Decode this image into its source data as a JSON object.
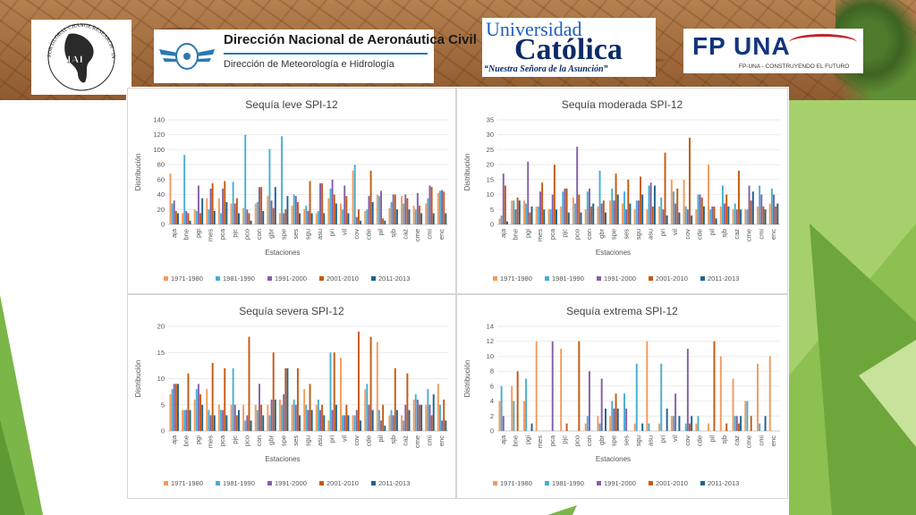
{
  "header": {
    "iai": {
      "ring_text": "FOR GLOBAL CHANGE RESEARCH · INTER-AMERICAN INSTITUTE",
      "initials": "IAI"
    },
    "dinac": {
      "title": "Dirección Nacional de Aeronáutica Civil",
      "subtitle": "Dirección de Meteorología e Hidrología"
    },
    "uc": {
      "line1": "Universidad",
      "line2": "Católica",
      "line3": "“Nuestra Señora de la Asunción”"
    },
    "fpuna": {
      "mark": "FP UNA",
      "tagline": "FP-UNA - CONSTRUYENDO EL FUTURO"
    }
  },
  "colors": {
    "1971-1980": "#f39b5c",
    "1981-1990": "#4aaed0",
    "1991-2000": "#8560a8",
    "2001-2010": "#c55a11",
    "2011-2013": "#1f6391",
    "accent_green": "#7ab648"
  },
  "chart_data": [
    {
      "type": "bar",
      "title": "Sequía leve SPI-12",
      "xlabel": "Estaciones",
      "ylabel": "Distribución",
      "ylim": [
        0,
        140
      ],
      "yticks": [
        0,
        20,
        40,
        60,
        80,
        100,
        120,
        140
      ],
      "grid": true,
      "legend": "bottom",
      "categories": [
        "aja",
        "bne",
        "pgi",
        "mes",
        "pca",
        "pjc",
        "pco",
        "con",
        "gbr",
        "spe",
        "ses",
        "sgu",
        "asu",
        "pri",
        "vil",
        "cov",
        "cde",
        "pil",
        "sjb",
        "caz",
        "cme",
        "cmi",
        "enc"
      ],
      "series": [
        {
          "name": "1971-1980",
          "values": [
            68,
            15,
            20,
            35,
            35,
            28,
            22,
            28,
            38,
            15,
            25,
            20,
            15,
            35,
            28,
            72,
            18,
            40,
            22,
            38,
            25,
            28,
            42
          ]
        },
        {
          "name": "1981-1990",
          "values": [
            28,
            93,
            18,
            20,
            15,
            57,
            120,
            30,
            101,
            118,
            40,
            25,
            18,
            48,
            20,
            80,
            20,
            38,
            30,
            28,
            20,
            35,
            45
          ]
        },
        {
          "name": "1991-2000",
          "values": [
            32,
            18,
            52,
            48,
            48,
            28,
            20,
            50,
            32,
            15,
            38,
            18,
            55,
            60,
            52,
            10,
            38,
            45,
            40,
            40,
            42,
            52,
            46
          ]
        },
        {
          "name": "2001-2010",
          "values": [
            18,
            15,
            15,
            55,
            58,
            35,
            15,
            50,
            22,
            20,
            30,
            58,
            55,
            40,
            38,
            20,
            72,
            8,
            40,
            35,
            25,
            50,
            44
          ]
        },
        {
          "name": "2011-2013",
          "values": [
            15,
            5,
            35,
            18,
            30,
            15,
            5,
            18,
            50,
            38,
            15,
            15,
            15,
            28,
            15,
            5,
            30,
            5,
            20,
            20,
            15,
            15,
            15
          ]
        }
      ]
    },
    {
      "type": "bar",
      "title": "Sequía moderada SPI-12",
      "xlabel": "Estaciones",
      "ylabel": "Distribución",
      "ylim": [
        0,
        35
      ],
      "yticks": [
        0,
        5,
        10,
        15,
        20,
        25,
        30,
        35
      ],
      "grid": true,
      "legend": "bottom",
      "categories": [
        "aja",
        "bne",
        "pgi",
        "mes",
        "pca",
        "pjc",
        "pco",
        "con",
        "gbr",
        "spe",
        "ses",
        "sgu",
        "asu",
        "pri",
        "vil",
        "cov",
        "cde",
        "pil",
        "sjb",
        "caz",
        "cme",
        "cmi",
        "enc"
      ],
      "series": [
        {
          "name": "1971-1980",
          "values": [
            2,
            8,
            8,
            6,
            5,
            6,
            9,
            5,
            6,
            8,
            7,
            5,
            5,
            6,
            15,
            15,
            5,
            20,
            6,
            5,
            5,
            6,
            7
          ]
        },
        {
          "name": "1981-1990",
          "values": [
            3,
            8,
            7,
            6,
            5,
            11,
            7,
            11,
            18,
            12,
            11,
            8,
            13,
            9,
            11,
            6,
            10,
            5,
            13,
            7,
            5,
            13,
            12
          ]
        },
        {
          "name": "1991-2000",
          "values": [
            17,
            5,
            21,
            11,
            10,
            12,
            26,
            12,
            7,
            8,
            5,
            8,
            14,
            5,
            7,
            5,
            10,
            6,
            7,
            5,
            13,
            10,
            10
          ]
        },
        {
          "name": "2001-2010",
          "values": [
            13,
            9,
            4,
            14,
            20,
            12,
            10,
            6,
            8,
            17,
            15,
            16,
            6,
            24,
            12,
            29,
            9,
            6,
            10,
            18,
            8,
            6,
            6
          ]
        },
        {
          "name": "2011-2013",
          "values": [
            1,
            8,
            6,
            5,
            5,
            4,
            4,
            7,
            4,
            10,
            7,
            10,
            13,
            3,
            4,
            3,
            6,
            2,
            6,
            5,
            11,
            5,
            7
          ]
        }
      ]
    },
    {
      "type": "bar",
      "title": "Sequía severa SPI-12",
      "xlabel": "Estaciones",
      "ylabel": "Distribución",
      "ylim": [
        0,
        20
      ],
      "yticks": [
        0,
        5,
        10,
        15,
        20
      ],
      "grid": true,
      "legend": "bottom",
      "categories": [
        "aja",
        "bne",
        "pgi",
        "mes",
        "pca",
        "pjc",
        "pco",
        "con",
        "gbr",
        "spe",
        "ses",
        "sgu",
        "asu",
        "pri",
        "vil",
        "cov",
        "cde",
        "pil",
        "sjb",
        "caz",
        "cme",
        "cmi",
        "enc"
      ],
      "series": [
        {
          "name": "1971-1980",
          "values": [
            7,
            4,
            6,
            8,
            5,
            5,
            5,
            5,
            5,
            6,
            5,
            8,
            5,
            2,
            14,
            3,
            8,
            17,
            3,
            3,
            6,
            5,
            9
          ]
        },
        {
          "name": "1981-1990",
          "values": [
            8,
            4,
            8,
            4,
            4,
            12,
            2,
            4,
            3,
            5,
            6,
            5,
            6,
            15,
            3,
            3,
            9,
            4,
            4,
            2,
            7,
            8,
            5
          ]
        },
        {
          "name": "1991-2000",
          "values": [
            9,
            4,
            9,
            3,
            4,
            5,
            3,
            9,
            6,
            7,
            5,
            4,
            4,
            4,
            3,
            4,
            5,
            2,
            3,
            5,
            6,
            5,
            2
          ]
        },
        {
          "name": "2001-2010",
          "values": [
            9,
            11,
            7,
            13,
            12,
            3,
            18,
            5,
            15,
            12,
            12,
            9,
            5,
            15,
            5,
            19,
            18,
            5,
            12,
            11,
            5,
            3,
            6
          ]
        },
        {
          "name": "2011-2013",
          "values": [
            9,
            4,
            5,
            3,
            3,
            4,
            2,
            3,
            6,
            12,
            3,
            4,
            3,
            5,
            3,
            2,
            4,
            1,
            4,
            4,
            5,
            7,
            2
          ]
        }
      ]
    },
    {
      "type": "bar",
      "title": "Sequía extrema SPI-12",
      "xlabel": "Estaciones",
      "ylabel": "Distribución",
      "ylim": [
        0,
        14
      ],
      "yticks": [
        0,
        2,
        4,
        6,
        8,
        10,
        12,
        14
      ],
      "grid": true,
      "legend": "bottom",
      "categories": [
        "aja",
        "bne",
        "pgi",
        "mes",
        "pca",
        "pjc",
        "pco",
        "con",
        "gbr",
        "spe",
        "ses",
        "sgu",
        "asu",
        "pri",
        "vil",
        "cov",
        "cde",
        "pil",
        "sjb",
        "caz",
        "cme",
        "cmi",
        "enc"
      ],
      "series": [
        {
          "name": "1971-1980",
          "values": [
            4,
            6,
            4,
            12,
            0,
            11,
            0,
            1,
            2,
            2,
            0,
            1,
            12,
            1,
            2,
            0,
            1,
            1,
            10,
            7,
            4,
            9,
            10
          ]
        },
        {
          "name": "1981-1990",
          "values": [
            6,
            4,
            7,
            0,
            0,
            0,
            0,
            2,
            1,
            4,
            5,
            9,
            1,
            9,
            2,
            1,
            2,
            0,
            0,
            2,
            4,
            1,
            0
          ]
        },
        {
          "name": "1991-2000",
          "values": [
            2,
            0,
            0,
            0,
            12,
            0,
            0,
            8,
            7,
            3,
            3,
            0,
            0,
            0,
            5,
            11,
            0,
            0,
            0,
            2,
            0,
            0,
            0
          ]
        },
        {
          "name": "2001-2010",
          "values": [
            0,
            8,
            0,
            0,
            0,
            1,
            12,
            0,
            0,
            5,
            0,
            0,
            0,
            0,
            0,
            1,
            0,
            12,
            1,
            1,
            2,
            0,
            0
          ]
        },
        {
          "name": "2011-2013",
          "values": [
            0,
            0,
            1,
            0,
            0,
            0,
            0,
            0,
            3,
            3,
            0,
            1,
            0,
            3,
            2,
            2,
            0,
            0,
            0,
            2,
            0,
            2,
            0
          ]
        }
      ]
    }
  ]
}
